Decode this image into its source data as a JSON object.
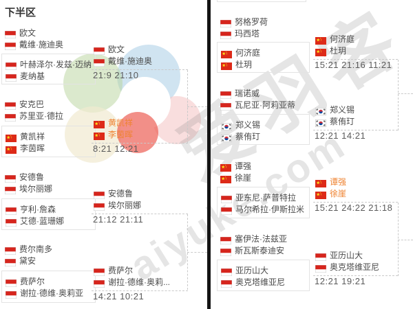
{
  "page": {
    "title": "下半区"
  },
  "watermark": {
    "text_cn": "爱羽客",
    "text_en": "aiyuke.com"
  },
  "colors": {
    "highlight_orange": "#ef8332",
    "name_gray": "#4a4a4a",
    "score_gray": "#5a5a5a",
    "box_border": "#e3e3e3",
    "dashed_line": "#c9c9c9",
    "divider_black": "#141414",
    "flag_red": "#d6251d",
    "china_flag_red": "#dd2a18",
    "korea_taegeuk_red": "#cd2e3a",
    "korea_taegeuk_blue": "#0047a0"
  },
  "bracket": {
    "left": {
      "matches": [
        {
          "team_a": {
            "p1": {
              "name": "欧文",
              "flag": "indonesia"
            },
            "p2": {
              "name": "戴维·施迪奥",
              "flag": "indonesia"
            }
          },
          "team_b": {
            "p1": {
              "name": "叶赫泽尔·发兹·迈纳",
              "flag": "indonesia"
            },
            "p2": {
              "name": "麦纳基",
              "flag": "indonesia"
            }
          },
          "winner": {
            "p1": {
              "name": "欧文",
              "flag": "indonesia"
            },
            "p2": {
              "name": "戴维·施迪奥",
              "flag": "indonesia"
            },
            "score": "21:9 21:10",
            "highlighted": false
          }
        },
        {
          "team_a": {
            "p1": {
              "name": "安克巴",
              "flag": "indonesia"
            },
            "p2": {
              "name": "苏里亚·德拉",
              "flag": "indonesia"
            }
          },
          "team_b": {
            "p1": {
              "name": "黄凯祥",
              "flag": "china"
            },
            "p2": {
              "name": "李茵晖",
              "flag": "china"
            }
          },
          "winner": {
            "p1": {
              "name": "黄凯祥",
              "flag": "china"
            },
            "p2": {
              "name": "李茵晖",
              "flag": "china"
            },
            "score": "8:21 12:21",
            "highlighted": true
          }
        },
        {
          "team_a": {
            "p1": {
              "name": "安德鲁",
              "flag": "indonesia"
            },
            "p2": {
              "name": "埃尔丽娜",
              "flag": "indonesia"
            }
          },
          "team_b": {
            "p1": {
              "name": "亨利·詹森",
              "flag": "indonesia"
            },
            "p2": {
              "name": "艾德·蓝珊娜",
              "flag": "indonesia"
            }
          },
          "winner": {
            "p1": {
              "name": "安德鲁",
              "flag": "indonesia"
            },
            "p2": {
              "name": "埃尔丽娜",
              "flag": "indonesia"
            },
            "score": "21:12 21:11",
            "highlighted": false
          }
        },
        {
          "team_a": {
            "p1": {
              "name": "费尔南多",
              "flag": "indonesia"
            },
            "p2": {
              "name": "黛安",
              "flag": "indonesia"
            }
          },
          "team_b": {
            "p1": {
              "name": "费萨尔",
              "flag": "indonesia"
            },
            "p2": {
              "name": "谢拉·德维·奥莉亚",
              "flag": "indonesia"
            }
          },
          "winner": {
            "p1": {
              "name": "费萨尔",
              "flag": "indonesia"
            },
            "p2": {
              "name": "谢拉·德维·奥莉...",
              "flag": "indonesia"
            },
            "score": "14:21 10:21",
            "highlighted": false
          }
        }
      ]
    },
    "right": {
      "matches": [
        {
          "team_a": {
            "p1": {
              "name": "努格罗荷",
              "flag": "indonesia"
            },
            "p2": {
              "name": "玛西塔",
              "flag": "indonesia"
            }
          },
          "team_b": {
            "p1": {
              "name": "何济庭",
              "flag": "china"
            },
            "p2": {
              "name": "杜玥",
              "flag": "china"
            }
          },
          "winner": {
            "p1": {
              "name": "何济庭",
              "flag": "china"
            },
            "p2": {
              "name": "杜玥",
              "flag": "china"
            },
            "score": "15:21 21:16 11:21",
            "highlighted": false
          }
        },
        {
          "team_a": {
            "p1": {
              "name": "瑞诺威",
              "flag": "indonesia"
            },
            "p2": {
              "name": "瓦尼亚·阿莉亚蒂",
              "flag": "indonesia"
            }
          },
          "team_b": {
            "p1": {
              "name": "郑义锡",
              "flag": "korea"
            },
            "p2": {
              "name": "蔡侑玎",
              "flag": "korea"
            }
          },
          "winner": {
            "p1": {
              "name": "郑义锡",
              "flag": "korea"
            },
            "p2": {
              "name": "蔡侑玎",
              "flag": "korea"
            },
            "score": "12:21 14:21",
            "highlighted": false
          }
        },
        {
          "team_a": {
            "p1": {
              "name": "谭强",
              "flag": "china"
            },
            "p2": {
              "name": "徐崖",
              "flag": "china"
            }
          },
          "team_b": {
            "p1": {
              "name": "亚东尼·萨普特拉",
              "flag": "indonesia"
            },
            "p2": {
              "name": "马尔希拉·伊斯拉米",
              "flag": "indonesia"
            }
          },
          "winner": {
            "p1": {
              "name": "谭强",
              "flag": "china"
            },
            "p2": {
              "name": "徐崖",
              "flag": "china"
            },
            "score": "15:21 24:22 21:18",
            "highlighted": true
          }
        },
        {
          "team_a": {
            "p1": {
              "name": "塞伊法·法兹亚",
              "flag": "indonesia"
            },
            "p2": {
              "name": "斯瓦斯泰迪安",
              "flag": "indonesia"
            }
          },
          "team_b": {
            "p1": {
              "name": "亚历山大",
              "flag": "indonesia"
            },
            "p2": {
              "name": "奥克塔维亚尼",
              "flag": "indonesia"
            }
          },
          "winner": {
            "p1": {
              "name": "亚历山大",
              "flag": "indonesia"
            },
            "p2": {
              "name": "奥克塔维亚尼",
              "flag": "indonesia"
            },
            "score": "12:21 19:21",
            "highlighted": false
          }
        }
      ]
    }
  }
}
